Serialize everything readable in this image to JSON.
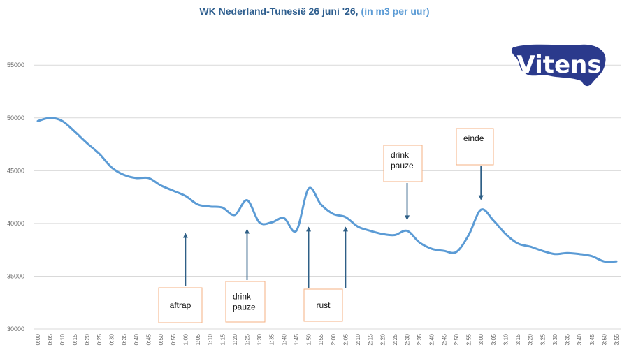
{
  "chart_data": {
    "type": "line",
    "title": "WK Nederland-Tunesië 26 juni '26,",
    "subtitle": "(in m3 per uur)",
    "ylim": [
      30000,
      57000
    ],
    "yticks": [
      30000,
      35000,
      40000,
      45000,
      50000,
      55000
    ],
    "grid": true,
    "x": [
      "0:00",
      "0:05",
      "0:10",
      "0:15",
      "0:20",
      "0:25",
      "0:30",
      "0:35",
      "0:40",
      "0:45",
      "0:50",
      "0:55",
      "1:00",
      "1:05",
      "1:10",
      "1:15",
      "1:20",
      "1:25",
      "1:30",
      "1:35",
      "1:40",
      "1:45",
      "1:50",
      "1:55",
      "2:00",
      "2:05",
      "2:10",
      "2:15",
      "2:20",
      "2:25",
      "2:30",
      "2:35",
      "2:40",
      "2:45",
      "2:50",
      "2:55",
      "3:00",
      "3:05",
      "3:10",
      "3:15",
      "3:20",
      "3:25",
      "3:30",
      "3:35",
      "3:40",
      "3:45",
      "3:50",
      "3:55"
    ],
    "series": [
      {
        "color": "#5b9bd5",
        "values": [
          49700,
          50000,
          49700,
          48700,
          47600,
          46600,
          45300,
          44600,
          44300,
          44300,
          43600,
          43100,
          42600,
          41800,
          41600,
          41500,
          40800,
          42200,
          40100,
          40100,
          40500,
          39300,
          43300,
          41800,
          40900,
          40600,
          39700,
          39300,
          39000,
          38900,
          39300,
          38200,
          37600,
          37400,
          37300,
          38900,
          41300,
          40300,
          39000,
          38100,
          37800,
          37400,
          37100,
          37200,
          37100,
          36900,
          36400,
          36400
        ]
      }
    ],
    "annotations": [
      {
        "text": "aftrap",
        "time": "1:00",
        "value": 39100
      },
      {
        "text": "drink pauze",
        "time": "1:25",
        "value": 39500
      },
      {
        "text": "rust",
        "time": "1:50",
        "value": 39700
      },
      {
        "text": "",
        "time": "2:05",
        "value": 39700
      },
      {
        "text": "drink pauze",
        "time": "2:30",
        "value": 40300
      },
      {
        "text": "einde",
        "time": "3:00",
        "value": 42200
      }
    ]
  },
  "logo": {
    "text": "Vitens",
    "color": "#2b3a8c"
  }
}
